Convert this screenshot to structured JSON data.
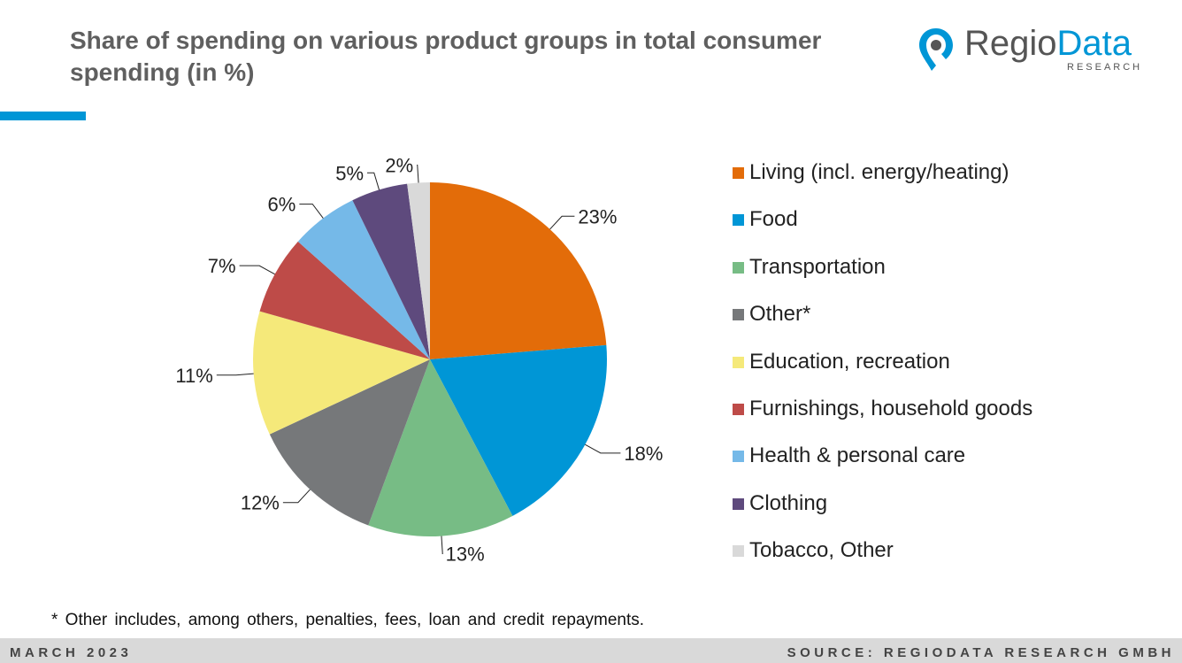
{
  "header": {
    "title": "Share of spending on various product groups in total consumer spending (in %)",
    "logo_text_part1": "Regio",
    "logo_text_part2": "Data",
    "logo_subtext": "RESEARCH",
    "accent_color": "#0096d6"
  },
  "chart_data": {
    "type": "pie",
    "title": "Share of spending on various product groups in total consumer spending (in %)",
    "legend_position": "right",
    "categories": [
      "Living (incl. energy/heating)",
      "Food",
      "Transportation",
      "Other*",
      "Education, recreation",
      "Furnishings, household goods",
      "Health & personal care",
      "Clothing",
      "Tobacco, Other"
    ],
    "values": [
      23,
      18,
      13,
      12,
      11,
      7,
      6,
      5,
      2
    ],
    "labels": [
      "23%",
      "18%",
      "13%",
      "12%",
      "11%",
      "7%",
      "6%",
      "5%",
      "2%"
    ],
    "colors": [
      "#e36c09",
      "#0096d6",
      "#77bc85",
      "#76787a",
      "#f5e97a",
      "#be4b48",
      "#75b9e8",
      "#5e4a7d",
      "#d9d9d9"
    ]
  },
  "footnote": "* Other includes, among others, penalties, fees, loan and credit repayments.",
  "footer": {
    "date": "MARCH 2023",
    "source": "SOURCE: REGIODATA RESEARCH GMBH"
  }
}
